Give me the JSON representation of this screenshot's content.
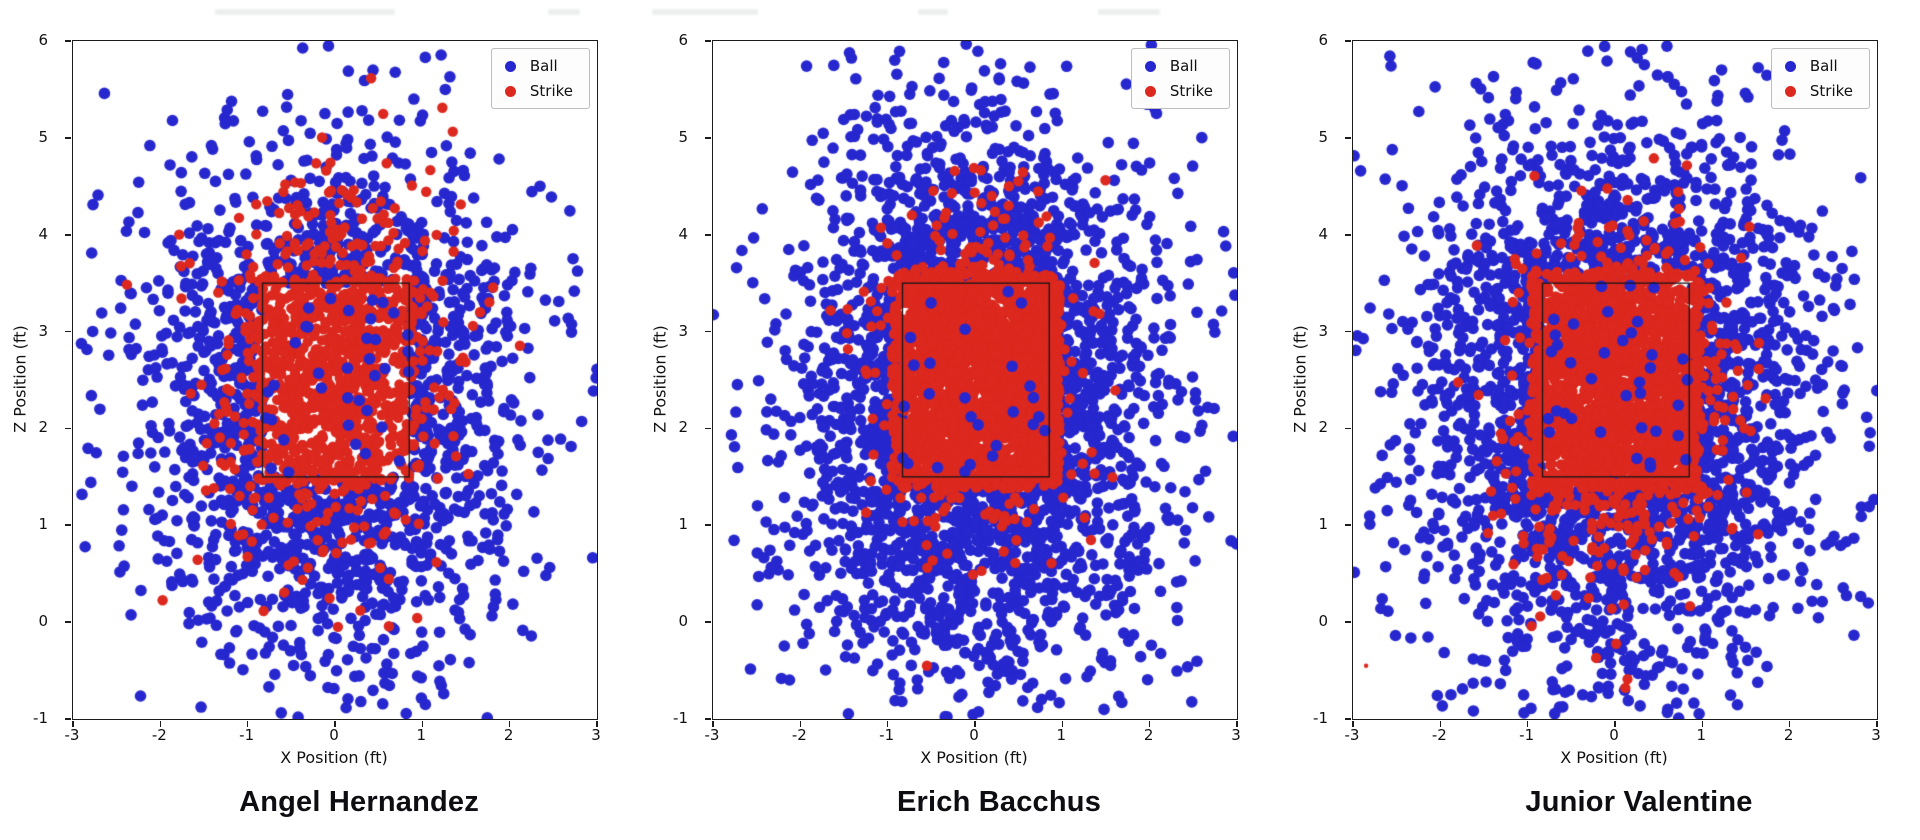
{
  "page": {
    "background": "#ffffff"
  },
  "chart_data": {
    "type": "scatter",
    "layout": "three-panel-row",
    "colors": {
      "ball": "#2727cf",
      "strike": "#dc281e",
      "zone_line": "#14141a",
      "plot_bg": "#ffffff"
    },
    "marker": {
      "ball_radius_px": 5.8,
      "strike_radius_px": 5.2
    },
    "panels": [
      {
        "name": "Angel Hernandez",
        "xlabel": "X Position (ft)",
        "ylabel": "Z Position (ft)",
        "xlim": [
          -3,
          3
        ],
        "ylim": [
          -1,
          6
        ],
        "xtick_values": [
          -3,
          -2,
          -1,
          0,
          1,
          2,
          3
        ],
        "xtick_labels": [
          "-3",
          "-2",
          "-1",
          "0",
          "1",
          "2",
          "3"
        ],
        "ytick_values": [
          -1,
          0,
          1,
          2,
          3,
          4,
          5,
          6
        ],
        "ytick_labels": [
          "-1",
          "0",
          "1",
          "2",
          "3",
          "4",
          "5",
          "6"
        ],
        "legend": [
          {
            "label": "Ball",
            "color": "#2727cf"
          },
          {
            "label": "Strike",
            "color": "#dc281e"
          }
        ],
        "strike_zone": {
          "x_min": -0.83,
          "x_max": 0.85,
          "z_min": 1.5,
          "z_max": 3.5
        },
        "series": {
          "ball": {
            "count": 2300,
            "center": [
              0,
              2.25
            ],
            "sigma": [
              1.05,
              1.35
            ],
            "in_zone_keep": 0.06,
            "seed": 101
          },
          "strike": {
            "seed": 202,
            "uniform_fill": {
              "count": 520,
              "expand": 0.06
            },
            "gaussian": {
              "count": 750,
              "center": [
                -0.05,
                2.6
              ],
              "sigma": [
                0.65,
                0.9
              ]
            },
            "outliers": []
          }
        }
      },
      {
        "name": "Erich Bacchus",
        "xlabel": "X Position (ft)",
        "ylabel": "Z Position (ft)",
        "xlim": [
          -3,
          3
        ],
        "ylim": [
          -1,
          6
        ],
        "xtick_values": [
          -3,
          -2,
          -1,
          0,
          1,
          2,
          3
        ],
        "xtick_labels": [
          "-3",
          "-2",
          "-1",
          "0",
          "1",
          "2",
          "3"
        ],
        "ytick_values": [
          -1,
          0,
          1,
          2,
          3,
          4,
          5,
          6
        ],
        "ytick_labels": [
          "-1",
          "0",
          "1",
          "2",
          "3",
          "4",
          "5",
          "6"
        ],
        "legend": [
          {
            "label": "Ball",
            "color": "#2727cf"
          },
          {
            "label": "Strike",
            "color": "#dc281e"
          }
        ],
        "strike_zone": {
          "x_min": -0.83,
          "x_max": 0.85,
          "z_min": 1.5,
          "z_max": 3.5
        },
        "series": {
          "ball": {
            "count": 3300,
            "center": [
              0,
              2.3
            ],
            "sigma": [
              1.0,
              1.45
            ],
            "in_zone_keep": 0.02,
            "seed": 303
          },
          "strike": {
            "seed": 404,
            "uniform_fill": {
              "count": 1700,
              "expand": 0.12
            },
            "gaussian": {
              "count": 850,
              "center": [
                0.05,
                2.55
              ],
              "sigma": [
                0.55,
                0.75
              ]
            },
            "outliers": [
              {
                "x": -0.55,
                "z": -0.45,
                "r": 5.2
              }
            ]
          }
        }
      },
      {
        "name": "Junior Valentine",
        "xlabel": "X Position (ft)",
        "ylabel": "Z Position (ft)",
        "xlim": [
          -3,
          3
        ],
        "ylim": [
          -1,
          6
        ],
        "xtick_values": [
          -3,
          -2,
          -1,
          0,
          1,
          2,
          3
        ],
        "xtick_labels": [
          "-3",
          "-2",
          "-1",
          "0",
          "1",
          "2",
          "3"
        ],
        "ytick_values": [
          -1,
          0,
          1,
          2,
          3,
          4,
          5,
          6
        ],
        "ytick_labels": [
          "-1",
          "0",
          "1",
          "2",
          "3",
          "4",
          "5",
          "6"
        ],
        "legend": [
          {
            "label": "Ball",
            "color": "#2727cf"
          },
          {
            "label": "Strike",
            "color": "#dc281e"
          }
        ],
        "strike_zone": {
          "x_min": -0.83,
          "x_max": 0.85,
          "z_min": 1.5,
          "z_max": 3.5
        },
        "series": {
          "ball": {
            "count": 3200,
            "center": [
              0.05,
              2.3
            ],
            "sigma": [
              1.1,
              1.45
            ],
            "in_zone_keep": 0.04,
            "seed": 505
          },
          "strike": {
            "seed": 606,
            "uniform_fill": {
              "count": 1600,
              "expand": 0.13
            },
            "gaussian": {
              "count": 900,
              "center": [
                0.05,
                2.3
              ],
              "sigma": [
                0.6,
                0.85
              ]
            },
            "outliers": [
              {
                "x": -2.85,
                "z": -0.45,
                "r": 2.2
              }
            ]
          }
        }
      }
    ]
  }
}
